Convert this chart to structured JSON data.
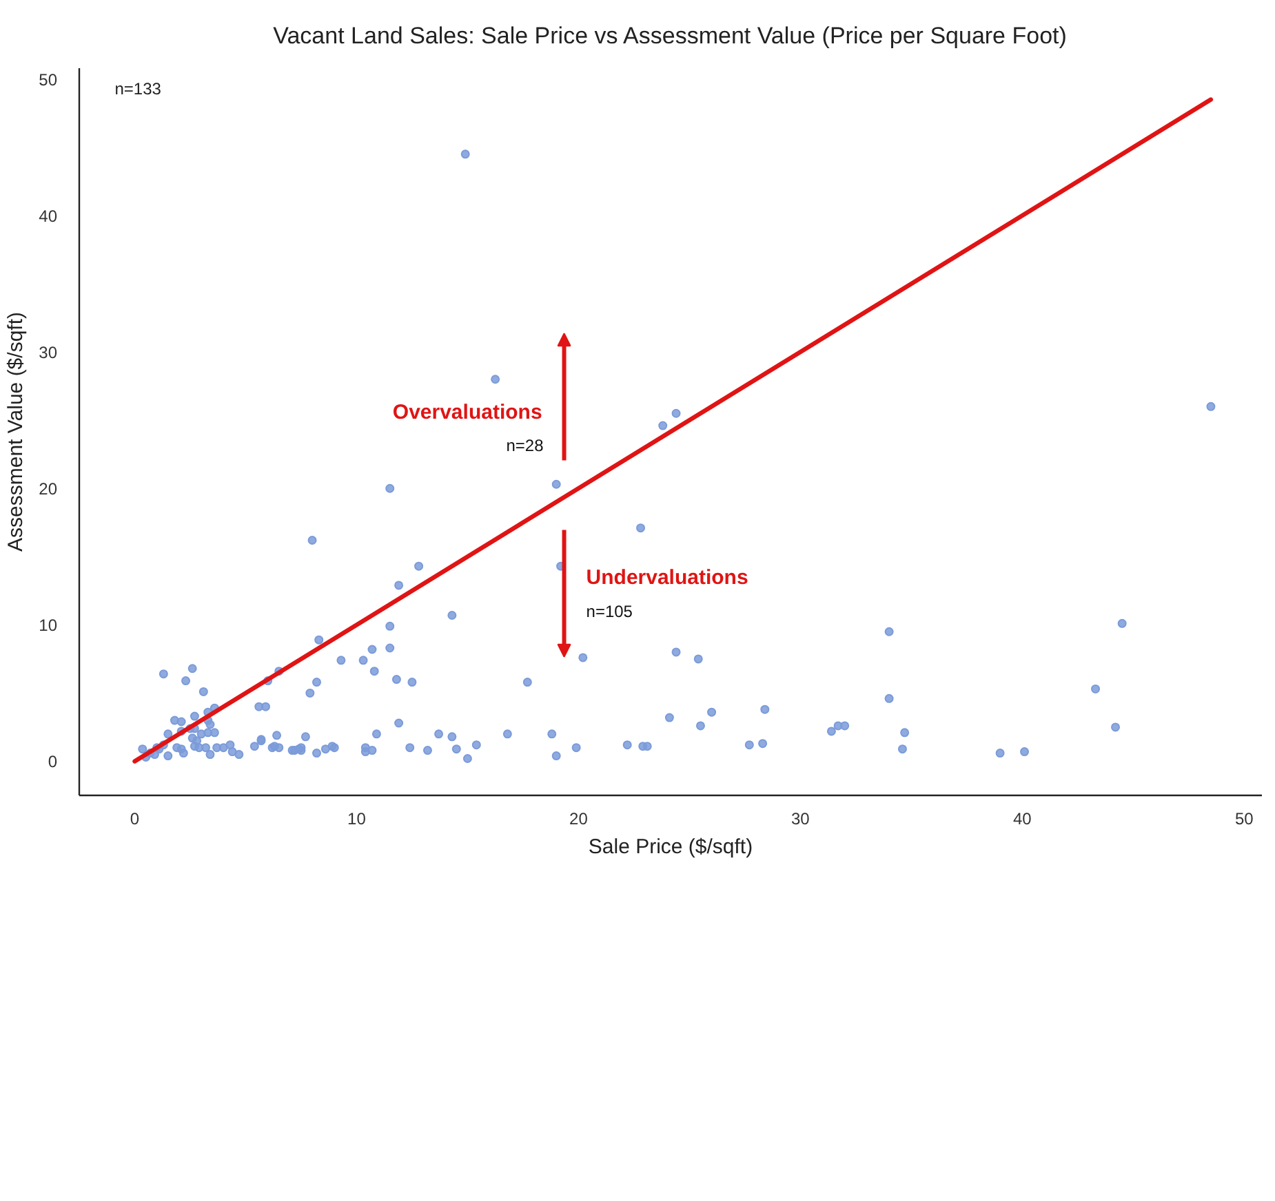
{
  "chart_data": {
    "type": "scatter",
    "title": "Vacant Land Sales: Sale Price vs Assessment Value (Price per Square Foot)",
    "xlabel": "Sale Price ($/sqft)",
    "ylabel": "Assessment Value ($/sqft)",
    "xlim": [
      -2.5,
      50.8
    ],
    "ylim": [
      -2.5,
      50.8
    ],
    "xticks": [
      0,
      10,
      20,
      30,
      40,
      50
    ],
    "yticks": [
      0,
      10,
      20,
      30,
      40,
      50
    ],
    "grid": false,
    "marker": "circle",
    "annotations": [
      "n=133",
      "Overvaluations",
      "n=28",
      "Undervaluations",
      "n=105"
    ],
    "series": [
      {
        "color": "#7b9bd9",
        "x": [
          14.9,
          16.25,
          23.8,
          24.4,
          48.5,
          11.5,
          19.0,
          22.8,
          8.0,
          19.2,
          12.8,
          11.9,
          14.3,
          34.0,
          44.5,
          11.5,
          8.3,
          11.5,
          10.7,
          24.4,
          20.2,
          25.4,
          9.3,
          10.3,
          10.8,
          6.5,
          2.6,
          1.3,
          6.0,
          2.3,
          8.2,
          11.8,
          12.5,
          17.7,
          43.3,
          3.1,
          7.9,
          34.0,
          5.6,
          5.9,
          3.6,
          28.4,
          26.0,
          24.1,
          11.9,
          25.5,
          31.7,
          32.0,
          44.2,
          31.4,
          34.7,
          18.8,
          10.9,
          13.7,
          16.8,
          6.4,
          7.7,
          14.3,
          5.7,
          15.4,
          22.2,
          22.9,
          23.1,
          27.7,
          28.3,
          19.9,
          19.0,
          34.6,
          39.0,
          40.1,
          5.4,
          6.2,
          6.5,
          7.2,
          7.5,
          7.5,
          8.2,
          8.6,
          8.9,
          9.0,
          10.4,
          10.4,
          10.7,
          12.4,
          13.2,
          14.5,
          15.0,
          1.8,
          2.1,
          2.7,
          3.3,
          3.4,
          1.5,
          2.1,
          2.5,
          2.7,
          3.0,
          3.3,
          3.6,
          2.6,
          2.8,
          0.35,
          0.7,
          0.9,
          1.1,
          1.3,
          1.5,
          1.9,
          2.1,
          2.2,
          2.7,
          2.9,
          3.2,
          3.4,
          3.7,
          4.0,
          4.3,
          4.4,
          4.7,
          5.7,
          6.3,
          7.1,
          7.4,
          3.3,
          1.0,
          0.5
        ],
        "values": [
          44.5,
          28.0,
          24.6,
          25.5,
          26.0,
          20.0,
          20.3,
          17.1,
          16.2,
          14.3,
          14.3,
          12.9,
          10.7,
          9.5,
          10.1,
          9.9,
          8.9,
          8.3,
          8.2,
          8.0,
          7.6,
          7.5,
          7.4,
          7.4,
          6.6,
          6.6,
          6.8,
          6.4,
          5.9,
          5.9,
          5.8,
          6.0,
          5.8,
          5.8,
          5.3,
          5.1,
          5.0,
          4.6,
          4.0,
          4.0,
          3.9,
          3.8,
          3.6,
          3.2,
          2.8,
          2.6,
          2.6,
          2.6,
          2.5,
          2.2,
          2.1,
          2.0,
          2.0,
          2.0,
          2.0,
          1.9,
          1.8,
          1.8,
          1.6,
          1.2,
          1.2,
          1.1,
          1.1,
          1.2,
          1.3,
          1.0,
          0.4,
          0.9,
          0.6,
          0.7,
          1.1,
          1.0,
          1.0,
          0.8,
          1.0,
          0.8,
          0.6,
          0.9,
          1.1,
          1.0,
          1.0,
          0.7,
          0.8,
          1.0,
          0.8,
          0.9,
          0.2,
          3.0,
          2.9,
          3.3,
          3.0,
          2.7,
          2.0,
          2.2,
          2.4,
          2.4,
          2.0,
          2.1,
          2.1,
          1.7,
          1.5,
          0.9,
          0.6,
          0.5,
          0.9,
          1.2,
          0.4,
          1.0,
          0.9,
          0.6,
          1.1,
          1.0,
          1.0,
          0.5,
          1.0,
          1.0,
          1.2,
          0.7,
          0.5,
          1.5,
          1.1,
          0.8,
          0.9,
          3.6,
          1.0,
          0.3
        ]
      },
      {
        "type": "line",
        "color": "#e01414",
        "marker": "none",
        "line_style": "solid",
        "x": [
          0,
          48.5
        ],
        "values": [
          0,
          48.5
        ]
      }
    ]
  }
}
